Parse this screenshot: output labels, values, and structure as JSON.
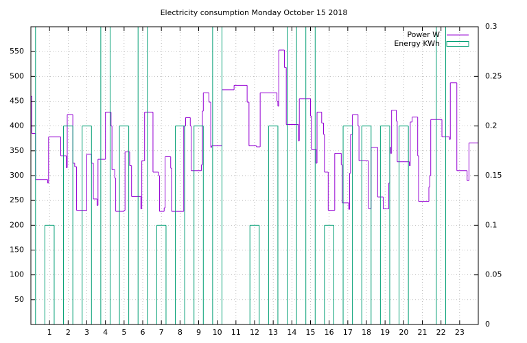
{
  "chart_data": {
    "type": "step",
    "title": "Electricity consumption Monday October 15 2018",
    "xlim": [
      0,
      24
    ],
    "xticks": [
      1,
      2,
      3,
      4,
      5,
      6,
      7,
      8,
      9,
      10,
      11,
      12,
      13,
      14,
      15,
      16,
      17,
      18,
      19,
      20,
      21,
      22,
      23
    ],
    "ylim": [
      0,
      600
    ],
    "yticks": [
      50,
      100,
      150,
      200,
      250,
      300,
      350,
      400,
      450,
      500,
      550
    ],
    "y2lim": [
      0,
      0.3
    ],
    "y2ticks": [
      0,
      0.05,
      0.1,
      0.15,
      0.2,
      0.25,
      0.3
    ],
    "grid": true,
    "legend": "top-right",
    "series": [
      {
        "name": "Power W",
        "color": "#9400d3",
        "x": [
          0,
          0.05,
          0.25,
          0.9,
          0.95,
          1.6,
          1.9,
          1.95,
          2.25,
          2.35,
          2.45,
          3.0,
          3.25,
          3.35,
          3.55,
          3.6,
          4.0,
          4.3,
          4.35,
          4.5,
          4.55,
          5.0,
          5.05,
          5.3,
          5.4,
          5.9,
          5.95,
          6.1,
          6.55,
          6.85,
          6.9,
          7.15,
          7.2,
          7.5,
          7.55,
          8.2,
          8.3,
          8.55,
          8.6,
          9.15,
          9.2,
          9.25,
          9.55,
          9.65,
          9.7,
          10.25,
          10.9,
          11.6,
          11.7,
          12.1,
          12.3,
          13.2,
          13.25,
          13.3,
          13.6,
          13.7,
          14.35,
          14.4,
          15.0,
          15.05,
          15.3,
          15.35,
          15.6,
          15.7,
          15.75,
          15.95,
          16.3,
          16.65,
          16.7,
          17.05,
          17.1,
          17.15,
          17.25,
          17.55,
          17.6,
          18.1,
          18.25,
          18.6,
          18.9,
          19.2,
          19.25,
          19.3,
          19.35,
          19.6,
          19.65,
          20.3,
          20.35,
          20.45,
          20.75,
          20.8,
          21.35,
          21.4,
          21.45,
          22.05,
          22.45,
          22.5,
          22.85,
          23.4,
          23.5,
          24
        ],
        "values": [
          460,
          385,
          292,
          285,
          378,
          340,
          316,
          423,
          325,
          318,
          230,
          343,
          325,
          253,
          240,
          333,
          428,
          400,
          312,
          295,
          228,
          230,
          348,
          320,
          258,
          233,
          330,
          428,
          307,
          300,
          228,
          235,
          338,
          315,
          228,
          400,
          417,
          400,
          310,
          322,
          430,
          467,
          448,
          357,
          360,
          473,
          482,
          448,
          360,
          358,
          467,
          450,
          440,
          553,
          518,
          403,
          370,
          455,
          420,
          353,
          325,
          428,
          406,
          383,
          307,
          230,
          345,
          322,
          245,
          232,
          305,
          383,
          423,
          400,
          330,
          234,
          357,
          257,
          233,
          285,
          357,
          345,
          432,
          410,
          328,
          320,
          408,
          418,
          340,
          248,
          277,
          300,
          413,
          378,
          373,
          487,
          310,
          290,
          366,
          366
        ]
      },
      {
        "name": "Energy KWh",
        "color": "#009e73",
        "axis": "y2",
        "x": [
          0,
          0.25,
          0.75,
          1.25,
          1.75,
          2.25,
          2.75,
          3.25,
          3.75,
          4.25,
          4.75,
          5.25,
          5.75,
          6.25,
          6.75,
          7.25,
          7.75,
          8.25,
          8.75,
          9.25,
          9.75,
          10.25,
          11.75,
          12.25,
          12.75,
          13.25,
          13.75,
          14.25,
          14.75,
          15.25,
          15.75,
          16.25,
          16.75,
          17.25,
          17.75,
          18.25,
          18.75,
          19.25,
          19.75,
          20.25,
          21.75,
          22.25,
          24
        ],
        "values": [
          0.3,
          0,
          0.1,
          0,
          0.2,
          0,
          0.2,
          0,
          0.3,
          0,
          0.2,
          0,
          0.3,
          0,
          0.1,
          0,
          0.2,
          0,
          0.2,
          0,
          0.3,
          0,
          0.1,
          0,
          0.2,
          0,
          0.3,
          0,
          0.3,
          0,
          0.1,
          0,
          0.2,
          0,
          0.2,
          0,
          0.2,
          0,
          0.2,
          0,
          0.3,
          0,
          0
        ]
      }
    ]
  }
}
